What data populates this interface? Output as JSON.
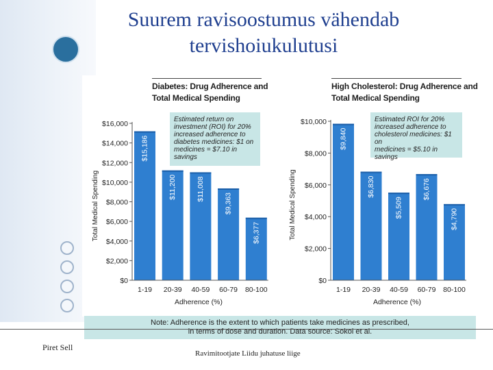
{
  "slide": {
    "title_line1": "Suurem ravisoostumus vähendab",
    "title_line2": "tervishoiukulutusi",
    "author": "Piret Sell",
    "organization": "Ravimitootjate Liidu juhatuse liige",
    "note_line1": "Note: Adherence is the extent to which patients take medicines as prescribed,",
    "note_line2": "in terms of dose and duration. Data source: Sokol et al."
  },
  "colors": {
    "bar": "#2f7fd0",
    "bar_dark": "#1b5ea8",
    "annotation_bg": "#c8e6e6",
    "title": "#1f3f8f"
  },
  "chart_data": [
    {
      "type": "bar",
      "title_line1": "Diabetes: Drug Adherence and",
      "title_line2": "Total Medical Spending",
      "xlabel": "Adherence (%)",
      "ylabel": "Total Medical Spending",
      "categories": [
        "1-19",
        "20-39",
        "40-59",
        "60-79",
        "80-100"
      ],
      "values": [
        15186,
        11200,
        11008,
        9363,
        6377
      ],
      "value_labels": [
        "$15,186",
        "$11,200",
        "$11,008",
        "$9,363",
        "$6,377"
      ],
      "ylim": [
        0,
        16000
      ],
      "yticks": [
        0,
        2000,
        4000,
        6000,
        8000,
        10000,
        12000,
        14000,
        16000
      ],
      "ytick_labels": [
        "$0",
        "$2,000",
        "$4,000",
        "$6,000",
        "$8,000",
        "$10,000",
        "$12,000",
        "$14,000",
        "$16,000"
      ],
      "annotation": [
        "Estimated return on",
        "investment (ROI) for 20%",
        "increased adherence to",
        "diabetes medicines: $1 on",
        "medicines = $7.10 in savings"
      ],
      "grid": false,
      "legend": "none"
    },
    {
      "type": "bar",
      "title_line1": "High Cholesterol: Drug Adherence and",
      "title_line2": "Total Medical Spending",
      "xlabel": "Adherence (%)",
      "ylabel": "Total Medical Spending",
      "categories": [
        "1-19",
        "20-39",
        "40-59",
        "60-79",
        "80-100"
      ],
      "values": [
        9840,
        6830,
        5509,
        6676,
        4790
      ],
      "value_labels": [
        "$9,840",
        "$6,830",
        "$5,509",
        "$6,676",
        "$4,790"
      ],
      "ylim": [
        0,
        10000
      ],
      "yticks": [
        0,
        2000,
        4000,
        6000,
        8000,
        10000
      ],
      "ytick_labels": [
        "$0",
        "$2,000",
        "$4,000",
        "$6,000",
        "$8,000",
        "$10,000"
      ],
      "annotation": [
        "Estimated ROI for 20%",
        "increased adherence to",
        "cholesterol medicines: $1 on",
        "medicines = $5.10 in savings"
      ],
      "grid": false,
      "legend": "none"
    }
  ]
}
